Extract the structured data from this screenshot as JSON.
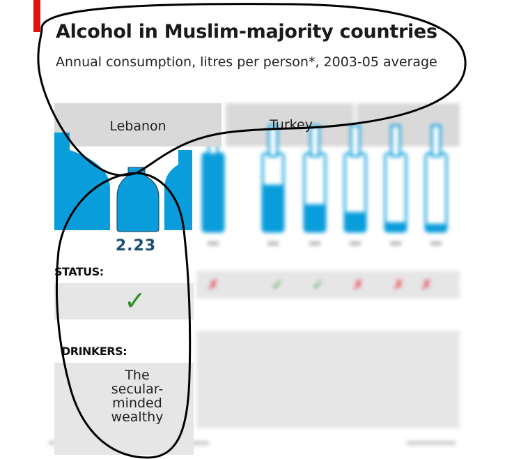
{
  "chart_data": {
    "type": "bar",
    "title": "Alcohol in Muslim-majority countries",
    "subtitle": "Annual consumption, litres per person*, 2003-05 average",
    "panels": [
      "Lebanon",
      "Turkey"
    ],
    "highlight": {
      "country": "Lebanon",
      "value": 2.23,
      "value_label": "2.23"
    },
    "fill_levels": [
      0.9,
      0.6,
      0.35,
      0.25,
      0.12,
      0.1
    ],
    "status_label": "STATUS:",
    "status_symbol": "✓",
    "drinkers_label": "DRINKERS:",
    "drinkers_lines": [
      "The",
      "secular-",
      "minded",
      "wealthy"
    ]
  },
  "colors": {
    "accent_red": "#e3120b",
    "bottle_blue": "#0a9ddb",
    "value_navy": "#1b4f72",
    "tick_green": "#2a8f2a",
    "cross_red": "#e83a4a",
    "panel_grey": "#d9d9d9"
  }
}
